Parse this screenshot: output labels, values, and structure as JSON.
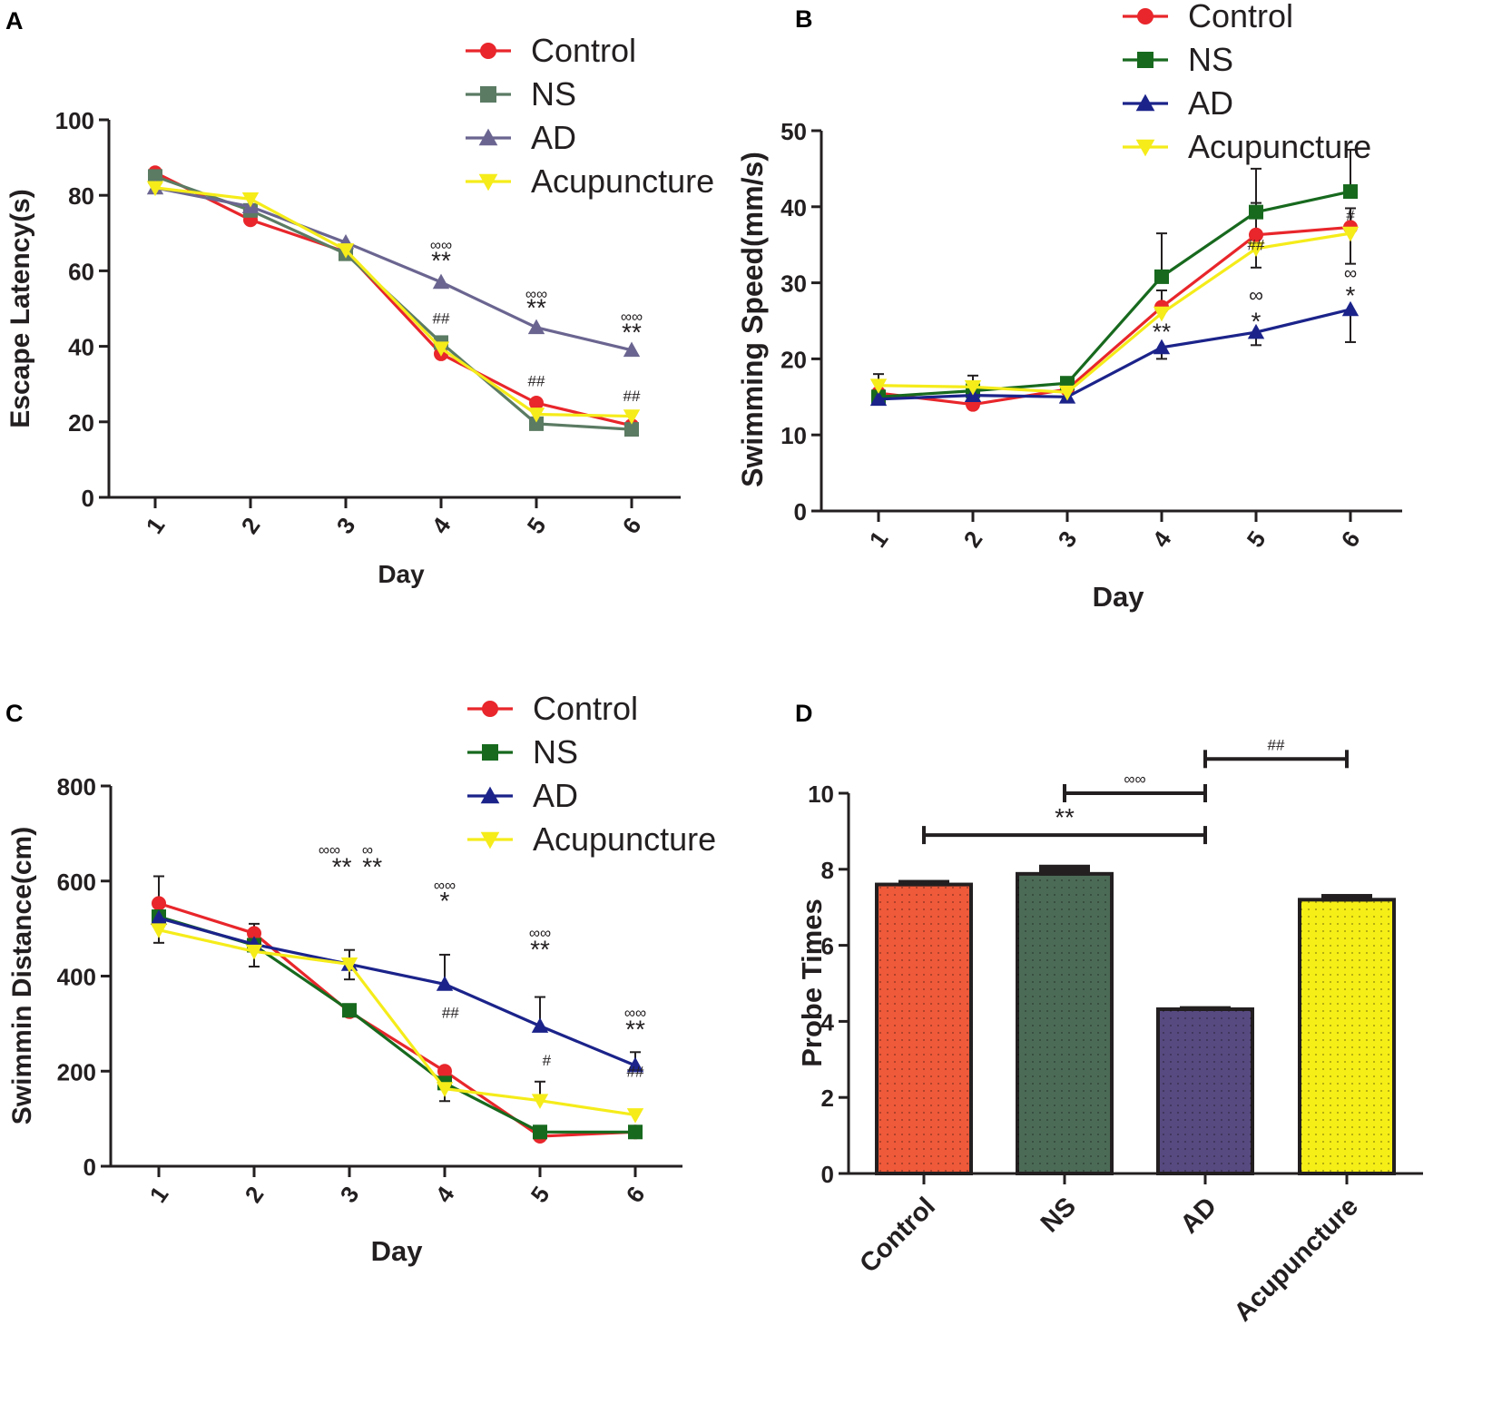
{
  "chart_data": [
    {
      "panel": "A",
      "type": "line",
      "xlabel": "Day",
      "ylabel": "Escape Latency(s)",
      "x": [
        1,
        2,
        3,
        4,
        5,
        6
      ],
      "ylim": [
        0,
        100
      ],
      "yticks": [
        0,
        20,
        40,
        60,
        80,
        100
      ],
      "legend_position": "top-right",
      "series": [
        {
          "name": "Control",
          "color": "#e8262b",
          "marker": "circle",
          "values": [
            86,
            73.5,
            65,
            38,
            25,
            19
          ]
        },
        {
          "name": "NS",
          "color": "#5b7b63",
          "marker": "square",
          "values": [
            85,
            76,
            64.5,
            41,
            19.5,
            18
          ]
        },
        {
          "name": "AD",
          "color": "#6a6590",
          "marker": "triangle-up",
          "values": [
            82,
            77,
            67.5,
            57,
            45,
            39
          ]
        },
        {
          "name": "Acupuncture",
          "color": "#f5ec1a",
          "marker": "triangle-down",
          "values": [
            82,
            79,
            65.5,
            39.5,
            22,
            21.5
          ]
        }
      ],
      "errors": [],
      "annotations": [
        {
          "x": 4,
          "y": 65.5,
          "text": "∞∞",
          "size": 17
        },
        {
          "x": 4,
          "y": 60.5,
          "text": "**",
          "size": 28
        },
        {
          "x": 4,
          "y": 46,
          "text": "##",
          "size": 17
        },
        {
          "x": 5,
          "y": 52.5,
          "text": "∞∞",
          "size": 17
        },
        {
          "x": 5,
          "y": 48,
          "text": "**",
          "size": 28
        },
        {
          "x": 5,
          "y": 29.5,
          "text": "##",
          "size": 17
        },
        {
          "x": 6,
          "y": 46.5,
          "text": "∞∞",
          "size": 17
        },
        {
          "x": 6,
          "y": 41.5,
          "text": "**",
          "size": 28
        },
        {
          "x": 6,
          "y": 25.5,
          "text": "##",
          "size": 17
        }
      ]
    },
    {
      "panel": "B",
      "type": "line",
      "xlabel": "Day",
      "ylabel": "Swimming Speed(mm/s)",
      "x": [
        1,
        2,
        3,
        4,
        5,
        6
      ],
      "ylim": [
        0,
        50
      ],
      "yticks": [
        0,
        10,
        20,
        30,
        40,
        50
      ],
      "legend_position": "top-right",
      "series": [
        {
          "name": "Control",
          "color": "#e8262b",
          "marker": "circle",
          "values": [
            15.5,
            14,
            16,
            26.8,
            36.3,
            37.3
          ]
        },
        {
          "name": "NS",
          "color": "#17691e",
          "marker": "square",
          "values": [
            15,
            15.8,
            16.8,
            30.8,
            39.3,
            42
          ]
        },
        {
          "name": "AD",
          "color": "#1b238a",
          "marker": "triangle-up",
          "values": [
            14.7,
            15.2,
            15,
            21.5,
            23.5,
            26.5
          ]
        },
        {
          "name": "Acupuncture",
          "color": "#f5ec1a",
          "marker": "triangle-down",
          "values": [
            16.5,
            16.3,
            15.6,
            26,
            34.5,
            36.5
          ]
        }
      ],
      "errors": [
        {
          "x": 1,
          "y": 16.5,
          "hi": 18
        },
        {
          "x": 2,
          "y": 16.3,
          "hi": 17.8
        },
        {
          "x": 4,
          "y": 30.8,
          "hi": 36.5
        },
        {
          "x": 4,
          "y": 26.8,
          "hi": 29
        },
        {
          "x": 4,
          "y": 21.5,
          "lo": 20
        },
        {
          "x": 5,
          "y": 39.3,
          "hi": 45
        },
        {
          "x": 5,
          "y": 36.3,
          "hi": 40.5
        },
        {
          "x": 5,
          "y": 34.5,
          "lo": 32
        },
        {
          "x": 5,
          "y": 23.5,
          "lo": 21.8
        },
        {
          "x": 6,
          "y": 42,
          "hi": 47.5
        },
        {
          "x": 6,
          "y": 37.3,
          "hi": 39.8
        },
        {
          "x": 6,
          "y": 36.5,
          "lo": 32.5
        },
        {
          "x": 6,
          "y": 26.5,
          "lo": 22.2
        }
      ],
      "annotations": [
        {
          "x": 4,
          "y": 22.5,
          "text": "**",
          "size": 26
        },
        {
          "x": 5,
          "y": 34.3,
          "text": "##",
          "size": 17
        },
        {
          "x": 5,
          "y": 27.5,
          "text": "∞",
          "size": 22
        },
        {
          "x": 5,
          "y": 23.8,
          "text": "*",
          "size": 28
        },
        {
          "x": 6,
          "y": 38.2,
          "text": "#",
          "size": 17
        },
        {
          "x": 6,
          "y": 30.5,
          "text": "∞",
          "size": 20
        },
        {
          "x": 6,
          "y": 27.2,
          "text": "*",
          "size": 28
        }
      ]
    },
    {
      "panel": "C",
      "type": "line",
      "xlabel": "Day",
      "ylabel": "Swimmin Distance(cm)",
      "x": [
        1,
        2,
        3,
        4,
        5,
        6
      ],
      "ylim": [
        0,
        800
      ],
      "yticks": [
        0,
        200,
        400,
        600,
        800
      ],
      "legend_position": "top-right",
      "series": [
        {
          "name": "Control",
          "color": "#e8262b",
          "marker": "circle",
          "values": [
            553,
            490,
            325,
            200,
            63,
            72
          ]
        },
        {
          "name": "NS",
          "color": "#17691e",
          "marker": "square",
          "values": [
            525,
            465,
            328,
            175,
            72,
            72
          ]
        },
        {
          "name": "AD",
          "color": "#1b238a",
          "marker": "triangle-up",
          "values": [
            522,
            467,
            425,
            383,
            295,
            212
          ]
        },
        {
          "name": "Acupuncture",
          "color": "#f5ec1a",
          "marker": "triangle-down",
          "values": [
            497,
            452,
            425,
            163,
            138,
            108
          ]
        }
      ],
      "errors": [
        {
          "x": 1,
          "y": 553,
          "hi": 610
        },
        {
          "x": 1,
          "y": 497,
          "lo": 470
        },
        {
          "x": 2,
          "y": 490,
          "hi": 510
        },
        {
          "x": 2,
          "y": 452,
          "lo": 420
        },
        {
          "x": 3,
          "y": 425,
          "hi": 455
        },
        {
          "x": 3,
          "y": 425,
          "lo": 393
        },
        {
          "x": 4,
          "y": 383,
          "hi": 445
        },
        {
          "x": 4,
          "y": 175,
          "lo": 137
        },
        {
          "x": 5,
          "y": 295,
          "hi": 356
        },
        {
          "x": 5,
          "y": 138,
          "hi": 178
        },
        {
          "x": 6,
          "y": 212,
          "hi": 240
        }
      ],
      "annotations": [
        {
          "x": 2.79,
          "y": 655,
          "text": "∞∞",
          "size": 17
        },
        {
          "x": 3.19,
          "y": 655,
          "text": "∞",
          "size": 17
        },
        {
          "x": 2.92,
          "y": 612,
          "text": "**",
          "size": 28
        },
        {
          "x": 3.24,
          "y": 612,
          "text": "**",
          "size": 28
        },
        {
          "x": 4,
          "y": 580,
          "text": "∞∞",
          "size": 17
        },
        {
          "x": 4,
          "y": 540,
          "text": "*",
          "size": 28
        },
        {
          "x": 4.06,
          "y": 312,
          "text": "##",
          "size": 17
        },
        {
          "x": 5,
          "y": 480,
          "text": "∞∞",
          "size": 17
        },
        {
          "x": 5,
          "y": 438,
          "text": "**",
          "size": 28
        },
        {
          "x": 5.07,
          "y": 212,
          "text": "#",
          "size": 17
        },
        {
          "x": 6,
          "y": 312,
          "text": "∞∞",
          "size": 17
        },
        {
          "x": 6,
          "y": 270,
          "text": "**",
          "size": 28
        },
        {
          "x": 6,
          "y": 188,
          "text": "##",
          "size": 17
        }
      ]
    },
    {
      "panel": "D",
      "type": "bar",
      "xlabel": "",
      "ylabel": "Probe Times",
      "categories": [
        "Control",
        "NS",
        "AD",
        "Acupuncture"
      ],
      "values": [
        7.6,
        7.88,
        4.32,
        7.2
      ],
      "error_hi": [
        7.72,
        8.12,
        4.4,
        7.35
      ],
      "colors": [
        "#ef5a3a",
        "#4c6b57",
        "#574a80",
        "#f6ee17"
      ],
      "ylim": [
        0,
        10
      ],
      "yticks": [
        0,
        2,
        4,
        6,
        8,
        10
      ],
      "brackets": [
        {
          "from": 0,
          "to": 2,
          "y": 8.9,
          "label": "**"
        },
        {
          "from": 1,
          "to": 2,
          "y": 10,
          "label": "∞∞"
        },
        {
          "from": 2,
          "to": 3,
          "y": 10.9,
          "label": "##"
        }
      ]
    }
  ]
}
